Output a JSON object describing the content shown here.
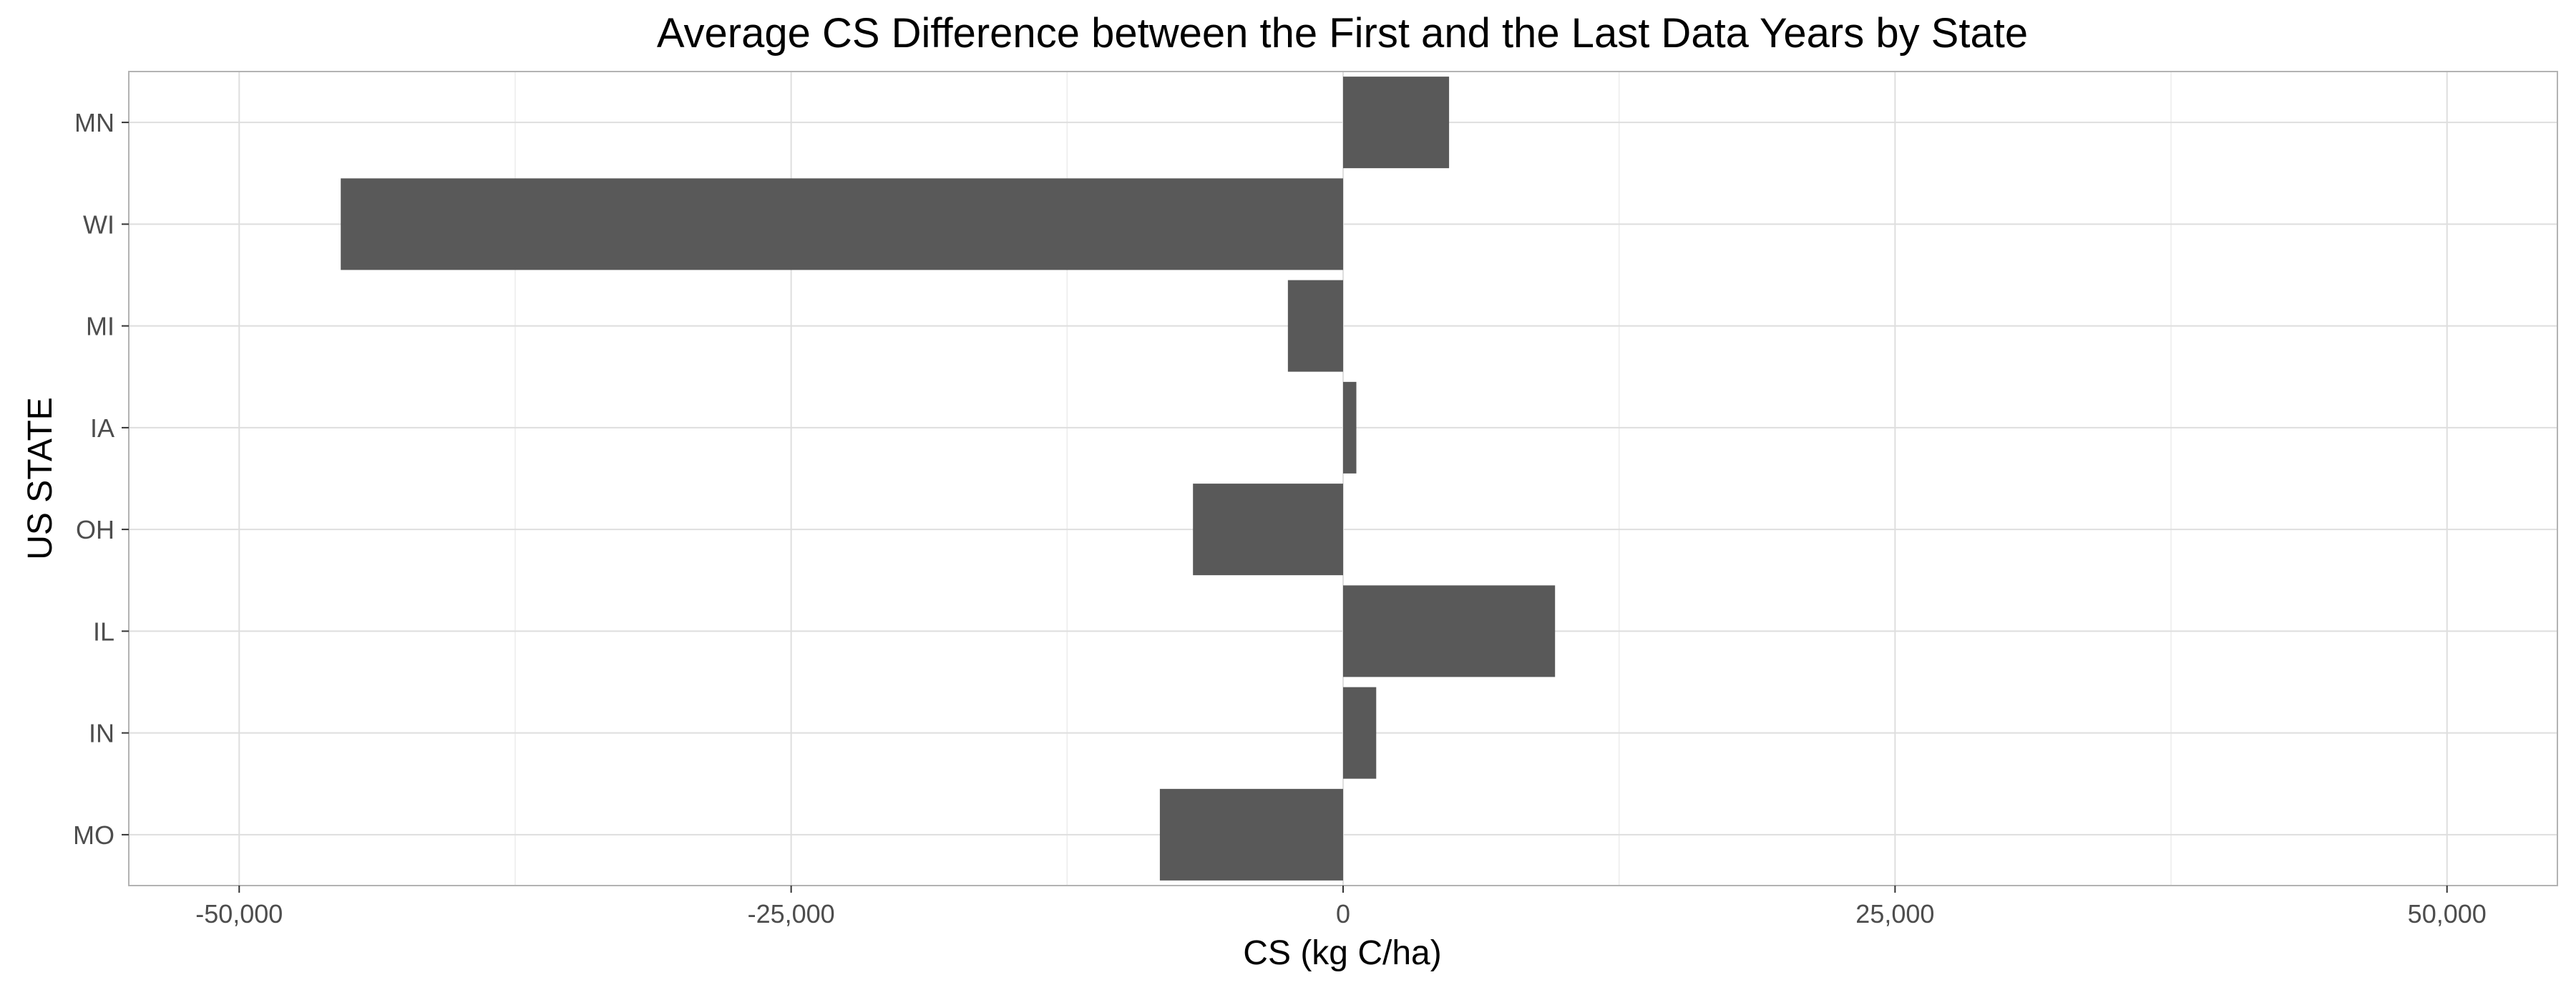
{
  "chart_data": {
    "type": "bar",
    "orientation": "horizontal",
    "title": "Average CS Difference between the First and the Last Data Years by State",
    "xlabel": "CS (kg C/ha)",
    "ylabel": "US STATE",
    "categories": [
      "MN",
      "WI",
      "MI",
      "IA",
      "OH",
      "IL",
      "IN",
      "MO"
    ],
    "values": [
      4800,
      -45400,
      -2500,
      600,
      -6800,
      9600,
      1500,
      -8300
    ],
    "xlim": [
      -55000,
      55000
    ],
    "x_ticks": [
      -50000,
      -25000,
      0,
      25000,
      50000
    ],
    "x_tick_labels": [
      "-50,000",
      "-25,000",
      "0",
      "25,000",
      "50,000"
    ],
    "grid": true,
    "bar_color": "#595959",
    "panel_border_color": "#b3b3b3",
    "grid_color": "#dedede"
  }
}
